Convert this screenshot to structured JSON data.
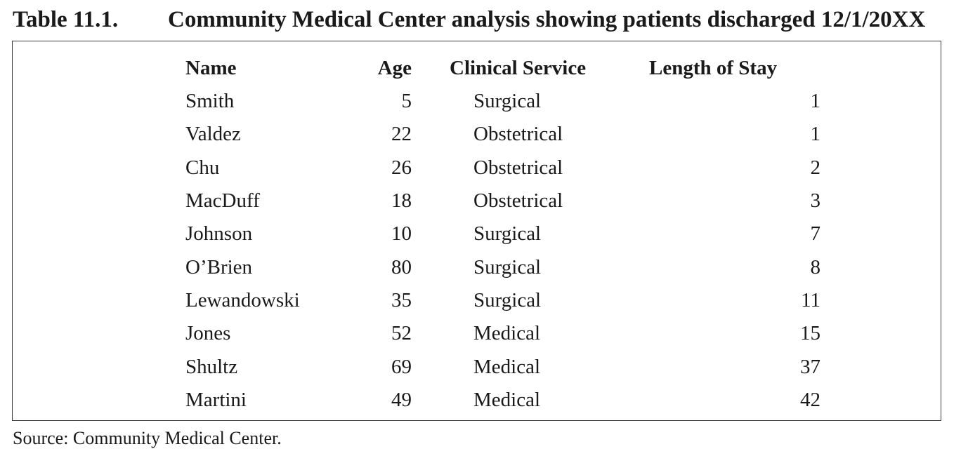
{
  "caption": {
    "label": "Table 11.1.",
    "title": "Community Medical Center analysis showing patients discharged 12/1/20XX"
  },
  "table": {
    "headers": [
      "Name",
      "Age",
      "Clinical Service",
      "Length of Stay"
    ],
    "rows": [
      [
        "Smith",
        "5",
        "Surgical",
        "1"
      ],
      [
        "Valdez",
        "22",
        "Obstetrical",
        "1"
      ],
      [
        "Chu",
        "26",
        "Obstetrical",
        "2"
      ],
      [
        "MacDuff",
        "18",
        "Obstetrical",
        "3"
      ],
      [
        "Johnson",
        "10",
        "Surgical",
        "7"
      ],
      [
        "O’Brien",
        "80",
        "Surgical",
        "8"
      ],
      [
        "Lewandowski",
        "35",
        "Surgical",
        "11"
      ],
      [
        "Jones",
        "52",
        "Medical",
        "15"
      ],
      [
        "Shultz",
        "69",
        "Medical",
        "37"
      ],
      [
        "Martini",
        "49",
        "Medical",
        "42"
      ]
    ]
  },
  "source": "Source: Community Medical Center."
}
